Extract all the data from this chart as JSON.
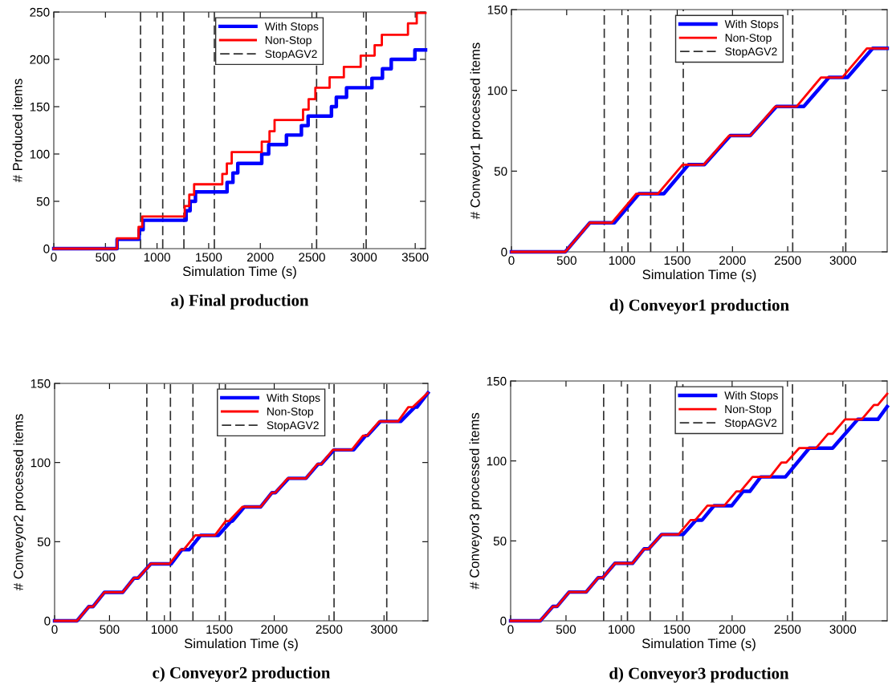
{
  "chart_data": [
    {
      "type": "step",
      "title": "a) Final production",
      "xlabel": "Simulation Time (s)",
      "ylabel": "# Produced items",
      "xlim": [
        0,
        3600
      ],
      "ylim": [
        0,
        250
      ],
      "xticks": [
        0,
        500,
        1000,
        1500,
        2000,
        2500,
        3000,
        3500
      ],
      "yticks": [
        0,
        50,
        100,
        150,
        200,
        250
      ],
      "legend": "top",
      "series": [
        {
          "name": "With Stops",
          "color": "#0000ff",
          "x": [
            0,
            613,
            826,
            865,
            1281,
            1320,
            1372,
            1678,
            1735,
            1782,
            2014,
            2081,
            2253,
            2398,
            2463,
            2689,
            2736,
            2835,
            3081,
            3183,
            3268,
            3497,
            3600
          ],
          "values": [
            0,
            10,
            20,
            30,
            40,
            50,
            60,
            70,
            80,
            90,
            100,
            110,
            120,
            130,
            140,
            150,
            160,
            170,
            180,
            190,
            200,
            210,
            210
          ]
        },
        {
          "name": "Non-Stop",
          "color": "#ff0000",
          "x": [
            0,
            613,
            821,
            857,
            1268,
            1312,
            1359,
            1632,
            1676,
            1723,
            2014,
            2089,
            2138,
            2414,
            2468,
            2533,
            2671,
            2809,
            2972,
            3107,
            3177,
            3430,
            3515,
            3600
          ],
          "values": [
            0,
            11,
            23,
            34,
            45,
            57,
            68,
            79,
            90,
            102,
            113,
            124,
            136,
            147,
            158,
            170,
            181,
            192,
            204,
            215,
            226,
            238,
            249,
            249
          ]
        },
        {
          "name": "StopAGV2",
          "type": "line",
          "line_style": "dashed",
          "color": "#303030",
          "x": [
            840,
            840,
            null,
            1055,
            1055,
            null,
            1260,
            1260,
            null,
            1555,
            1555,
            null,
            2545,
            2545,
            null,
            3025,
            3025
          ],
          "values": [
            0,
            250,
            null,
            0,
            250,
            null,
            0,
            250,
            null,
            0,
            250,
            null,
            0,
            250,
            null,
            0,
            250
          ]
        }
      ]
    },
    {
      "type": "line",
      "title": "d) Conveyor1 production",
      "xlabel": "Simulation Time (s)",
      "ylabel": "# Conveyor1 processed items",
      "xlim": [
        0,
        3400
      ],
      "ylim": [
        0,
        150
      ],
      "xticks": [
        0,
        500,
        1000,
        1500,
        2000,
        2500,
        3000
      ],
      "yticks": [
        0,
        50,
        100,
        150
      ],
      "legend": "top",
      "series": [
        {
          "name": "With Stops",
          "color": "#0000ff",
          "x": [
            0,
            487,
            710,
            931,
            1154,
            1379,
            1602,
            1746,
            1981,
            2161,
            2398,
            2645,
            2873,
            3041,
            3269,
            3400
          ],
          "values": [
            0,
            0,
            18,
            18,
            36,
            36,
            54,
            54,
            72,
            72,
            90,
            90,
            108,
            108,
            126,
            126
          ]
        },
        {
          "name": "Non-Stop",
          "color": "#ff0000",
          "x": [
            0,
            487,
            710,
            907,
            1130,
            1326,
            1549,
            1741,
            1969,
            2161,
            2386,
            2580,
            2801,
            2993,
            3216,
            3400
          ],
          "values": [
            0,
            0,
            18,
            18,
            36,
            36,
            54,
            54,
            72,
            72,
            90,
            90,
            108,
            108,
            126,
            126
          ]
        },
        {
          "name": "StopAGV2",
          "type": "line",
          "line_style": "dashed",
          "color": "#303030",
          "x": [
            840,
            840,
            null,
            1055,
            1055,
            null,
            1260,
            1260,
            null,
            1555,
            1555,
            null,
            2545,
            2545,
            null,
            3025,
            3025
          ],
          "values": [
            0,
            150,
            null,
            0,
            150,
            null,
            0,
            150,
            null,
            0,
            150,
            null,
            0,
            150,
            null,
            0,
            150
          ]
        }
      ]
    },
    {
      "type": "line",
      "title": "c) Conveyor2 production",
      "xlabel": "Simulation Time (s)",
      "ylabel": "# Conveyor2 processed items",
      "xlim": [
        0,
        3400
      ],
      "ylim": [
        0,
        150
      ],
      "xticks": [
        0,
        500,
        1000,
        1500,
        2000,
        2500,
        3000
      ],
      "yticks": [
        0,
        50,
        100,
        150
      ],
      "legend": "top",
      "series": [
        {
          "name": "With Stops",
          "color": "#0000ff",
          "x": [
            0,
            204,
            312,
            351,
            454,
            621,
            724,
            760,
            876,
            1062,
            1160,
            1227,
            1330,
            1491,
            1607,
            1620,
            1729,
            1877,
            1980,
            2011,
            2130,
            2289,
            2400,
            2428,
            2545,
            2723,
            2833,
            2850,
            2968,
            3152,
            3280,
            3300,
            3400
          ],
          "values": [
            0,
            0,
            9,
            9,
            18,
            18,
            27,
            27,
            36,
            36,
            45,
            45,
            54,
            54,
            63,
            63,
            72,
            72,
            81,
            81,
            90,
            90,
            99,
            99,
            108,
            108,
            117,
            117,
            126,
            126,
            135,
            135,
            144
          ]
        },
        {
          "name": "Non-Stop",
          "color": "#ff0000",
          "x": [
            0,
            204,
            312,
            351,
            454,
            621,
            724,
            760,
            876,
            1047,
            1148,
            1177,
            1281,
            1460,
            1558,
            1587,
            1710,
            1877,
            1980,
            2011,
            2122,
            2289,
            2392,
            2428,
            2534,
            2706,
            2809,
            2845,
            2956,
            3128,
            3221,
            3262,
            3397
          ],
          "values": [
            0,
            0,
            9,
            9,
            18,
            18,
            27,
            27,
            36,
            36,
            45,
            45,
            54,
            54,
            63,
            63,
            72,
            72,
            81,
            81,
            90,
            90,
            99,
            99,
            108,
            108,
            117,
            117,
            126,
            126,
            135,
            135,
            144
          ]
        },
        {
          "name": "StopAGV2",
          "type": "line",
          "line_style": "dashed",
          "color": "#303030",
          "x": [
            840,
            840,
            null,
            1055,
            1055,
            null,
            1260,
            1260,
            null,
            1555,
            1555,
            null,
            2545,
            2545,
            null,
            3025,
            3025
          ],
          "values": [
            0,
            150,
            null,
            0,
            150,
            null,
            0,
            150,
            null,
            0,
            150,
            null,
            0,
            150,
            null,
            0,
            150
          ]
        }
      ]
    },
    {
      "type": "line",
      "title": "d) Conveyor3 production",
      "xlabel": "Simulation Time (s)",
      "ylabel": "# Conveyor3 processed items",
      "xlim": [
        0,
        3400
      ],
      "ylim": [
        0,
        150
      ],
      "xticks": [
        0,
        500,
        1000,
        1500,
        2000,
        2500,
        3000
      ],
      "yticks": [
        0,
        50,
        100,
        150
      ],
      "legend": "top",
      "series": [
        {
          "name": "With Stops",
          "color": "#0000ff",
          "x": [
            0,
            268,
            382,
            419,
            528,
            682,
            791,
            833,
            942,
            1101,
            1205,
            1247,
            1364,
            1558,
            1673,
            1729,
            1836,
            1997,
            2099,
            2160,
            2258,
            2481,
            2696,
            2907,
            3134,
            3316,
            3400
          ],
          "values": [
            0,
            0,
            9,
            9,
            18,
            18,
            27,
            27,
            36,
            36,
            45,
            45,
            54,
            54,
            63,
            63,
            72,
            72,
            81,
            81,
            90,
            90,
            108,
            108,
            126,
            126,
            134
          ]
        },
        {
          "name": "Non-Stop",
          "color": "#ff0000",
          "x": [
            0,
            268,
            382,
            419,
            528,
            682,
            791,
            833,
            942,
            1101,
            1205,
            1247,
            1364,
            1515,
            1625,
            1668,
            1777,
            1929,
            2038,
            2075,
            2184,
            2343,
            2445,
            2489,
            2605,
            2757,
            2866,
            2907,
            3019,
            3170,
            3280,
            3316,
            3400
          ],
          "values": [
            0,
            0,
            9,
            9,
            18,
            18,
            27,
            27,
            36,
            36,
            45,
            45,
            54,
            54,
            63,
            63,
            72,
            72,
            81,
            81,
            90,
            90,
            99,
            99,
            108,
            108,
            117,
            117,
            126,
            126,
            135,
            135,
            142
          ]
        },
        {
          "name": "StopAGV2",
          "type": "line",
          "line_style": "dashed",
          "color": "#303030",
          "x": [
            840,
            840,
            null,
            1055,
            1055,
            null,
            1260,
            1260,
            null,
            1555,
            1555,
            null,
            2545,
            2545,
            null,
            3025,
            3025
          ],
          "values": [
            0,
            150,
            null,
            0,
            150,
            null,
            0,
            150,
            null,
            0,
            150,
            null,
            0,
            150,
            null,
            0,
            150
          ]
        }
      ]
    }
  ]
}
